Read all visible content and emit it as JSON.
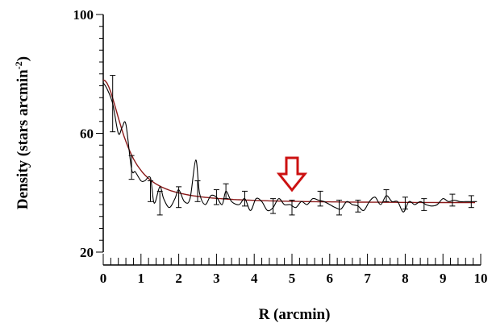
{
  "chart_data": {
    "type": "line",
    "xlabel": "R  (arcmin)",
    "ylabel_main": "Density (stars arcmin",
    "ylabel_sup": "-2",
    "ylabel_close": ")",
    "xlim": [
      0,
      10
    ],
    "ylim": [
      20,
      100
    ],
    "x_ticks": [
      "0",
      "1",
      "2",
      "3",
      "4",
      "5",
      "6",
      "7",
      "8",
      "9",
      "10"
    ],
    "y_ticks": [
      "20",
      "60",
      "100"
    ],
    "x_minor_step": 0.2,
    "y_minor_step": 4,
    "grid": false,
    "legend": "none",
    "colors": {
      "profile": "#000000",
      "fit": "#8b1a1a",
      "arrow": "#cc1111"
    },
    "arrow_x": 5.0,
    "fit": {
      "f_bg": 36.5,
      "f_0": 41.5,
      "r_c": 0.6
    },
    "error_bars": [
      {
        "x": 0.25,
        "y": 70,
        "err": 9.5
      },
      {
        "x": 0.75,
        "y": 48.5,
        "err": 4
      },
      {
        "x": 1.25,
        "y": 40.5,
        "err": 3.5
      },
      {
        "x": 1.5,
        "y": 36.5,
        "err": 4
      },
      {
        "x": 2.0,
        "y": 38.5,
        "err": 3.5
      },
      {
        "x": 2.5,
        "y": 40.5,
        "err": 3.5
      },
      {
        "x": 3.0,
        "y": 38.5,
        "err": 2.5
      },
      {
        "x": 3.25,
        "y": 40.5,
        "err": 2.5
      },
      {
        "x": 3.75,
        "y": 38,
        "err": 2.5
      },
      {
        "x": 4.5,
        "y": 35.5,
        "err": 2.5
      },
      {
        "x": 5.0,
        "y": 35,
        "err": 2.5
      },
      {
        "x": 5.75,
        "y": 38,
        "err": 2.5
      },
      {
        "x": 6.25,
        "y": 35,
        "err": 2.5
      },
      {
        "x": 6.75,
        "y": 35.5,
        "err": 2
      },
      {
        "x": 7.5,
        "y": 39,
        "err": 2
      },
      {
        "x": 8.0,
        "y": 36.5,
        "err": 2
      },
      {
        "x": 8.5,
        "y": 36,
        "err": 2
      },
      {
        "x": 9.25,
        "y": 37.5,
        "err": 2
      },
      {
        "x": 9.75,
        "y": 37,
        "err": 2
      }
    ],
    "profile": {
      "x": [
        0,
        0.1,
        0.25,
        0.4,
        0.5,
        0.6,
        0.75,
        0.85,
        1.0,
        1.1,
        1.25,
        1.35,
        1.5,
        1.6,
        1.75,
        1.9,
        2.0,
        2.15,
        2.3,
        2.45,
        2.55,
        2.7,
        2.85,
        3.0,
        3.15,
        3.25,
        3.4,
        3.6,
        3.75,
        3.9,
        4.05,
        4.2,
        4.35,
        4.5,
        4.65,
        4.8,
        4.95,
        5.1,
        5.25,
        5.4,
        5.55,
        5.7,
        5.85,
        6.0,
        6.15,
        6.3,
        6.45,
        6.6,
        6.75,
        6.9,
        7.05,
        7.2,
        7.35,
        7.5,
        7.65,
        7.8,
        7.95,
        8.1,
        8.25,
        8.4,
        8.55,
        8.7,
        8.85,
        9.0,
        9.15,
        9.3,
        9.45,
        9.6,
        9.75,
        9.9
      ],
      "y": [
        77,
        75,
        70,
        60,
        62,
        63,
        48,
        47,
        44,
        44,
        45,
        36.5,
        42,
        38,
        35,
        38,
        41,
        37,
        38,
        51,
        40,
        36,
        39,
        38.5,
        36,
        40.5,
        37,
        36,
        38,
        34,
        38,
        37,
        34,
        35,
        38,
        36,
        36,
        35,
        37,
        36,
        38,
        37.5,
        37,
        36,
        35,
        34.5,
        37,
        36,
        35.5,
        34,
        37,
        38.5,
        36,
        39,
        37,
        37,
        33.5,
        37,
        36,
        37,
        36,
        35.5,
        36,
        38,
        37,
        37.5,
        37,
        37,
        37,
        37
      ]
    }
  }
}
